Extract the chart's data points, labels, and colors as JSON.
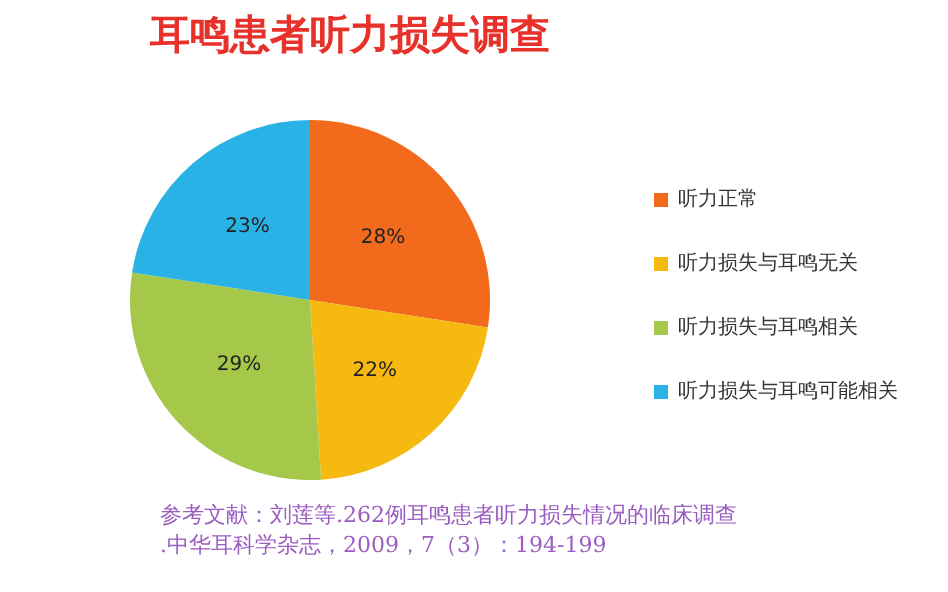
{
  "chart_data": {
    "type": "pie",
    "title": "耳鸣患者听力损失调查",
    "categories": [
      "听力正常",
      "听力损失与耳鸣无关",
      "听力损失与耳鸣相关",
      "听力损失与耳鸣可能相关"
    ],
    "values": [
      28,
      22,
      29,
      23
    ],
    "value_labels": [
      "28%",
      "22%",
      "29%",
      "23%"
    ],
    "colors": [
      "#f26a1c",
      "#f6b90f",
      "#a5c84a",
      "#29b2e6"
    ],
    "legend": "right",
    "annotations": [
      "参考文献：刘莲等.262例耳鸣患者听力损失情况的临床调查.中华耳科学杂志，2009，7（3）：194-199"
    ]
  }
}
